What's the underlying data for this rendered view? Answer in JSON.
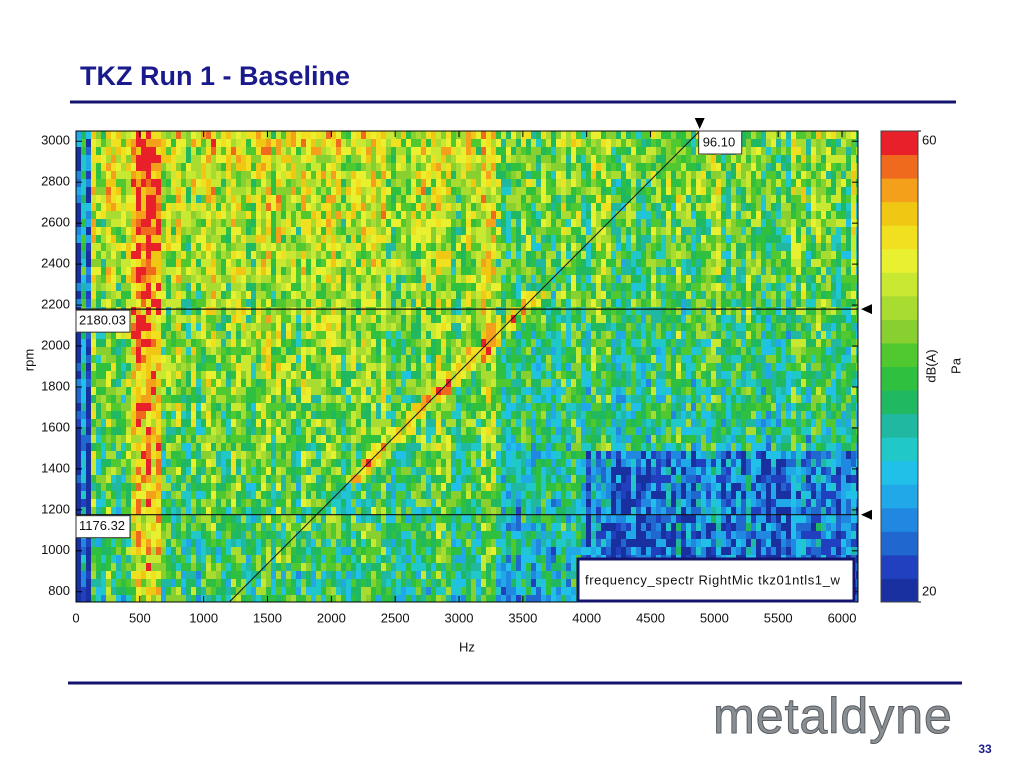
{
  "title": "TKZ Run 1 - Baseline",
  "chart_data": {
    "type": "heatmap",
    "xlabel": "Hz",
    "ylabel": "rpm",
    "xlim": [
      0,
      6125
    ],
    "ylim": [
      750,
      3050
    ],
    "xticks": [
      0,
      500,
      1000,
      1500,
      2000,
      2500,
      3000,
      3500,
      4000,
      4500,
      5000,
      5500,
      6000
    ],
    "yticks": [
      800,
      1000,
      1200,
      1400,
      1600,
      1800,
      2000,
      2200,
      2400,
      2600,
      2800,
      3000
    ],
    "rpm_cursors": [
      2180.03,
      1176.32
    ],
    "order_cursor": {
      "value": 96.1,
      "label": "96.10"
    },
    "legend": "frequency_spectr RightMic  tkz01ntls1_w",
    "colorbar": {
      "clim": [
        20,
        60
      ],
      "ticks": [
        20,
        60
      ],
      "label": "dB(A)",
      "unit": "Pa",
      "colors": [
        "#1830a0",
        "#2040c0",
        "#2068d0",
        "#2088e0",
        "#20a8e8",
        "#20c0e8",
        "#20c8c8",
        "#20b8a0",
        "#20b860",
        "#30c040",
        "#50c830",
        "#88d030",
        "#a8dc30",
        "#c8e832",
        "#e8f030",
        "#f0e020",
        "#f0c814",
        "#f5a01a",
        "#f06a1e",
        "#e8202a"
      ]
    }
  },
  "footer": {
    "logo": "metaldyne",
    "page": "33"
  }
}
